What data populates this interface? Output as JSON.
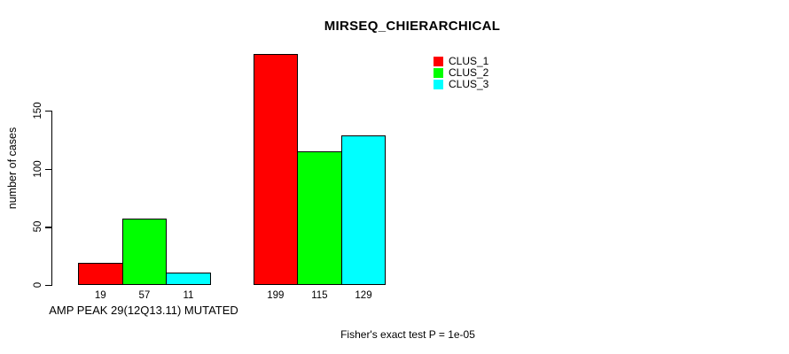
{
  "chart_data": {
    "type": "bar",
    "title": "MIRSEQ_CHIERARCHICAL",
    "ylabel": "number of cases",
    "xlabel": "AMP PEAK 29(12Q13.11) MUTATED",
    "annotation": "Fisher's exact test P = 1e-05",
    "categories": [
      "AMP PEAK 29(12Q13.11) MUTATED",
      ""
    ],
    "series": [
      {
        "name": "CLUS_1",
        "color": "#ff0000",
        "values": [
          19,
          199
        ]
      },
      {
        "name": "CLUS_2",
        "color": "#00ff00",
        "values": [
          57,
          115
        ]
      },
      {
        "name": "CLUS_3",
        "color": "#00ffff",
        "values": [
          11,
          129
        ]
      }
    ],
    "bar_value_labels": [
      19,
      57,
      11,
      199,
      115,
      129
    ],
    "yticks": [
      0,
      50,
      100,
      150
    ],
    "ylim": [
      0,
      205
    ],
    "grid": false,
    "legend_position": "top-right",
    "axis_color": "#000000",
    "background_color": "#ffffff"
  }
}
